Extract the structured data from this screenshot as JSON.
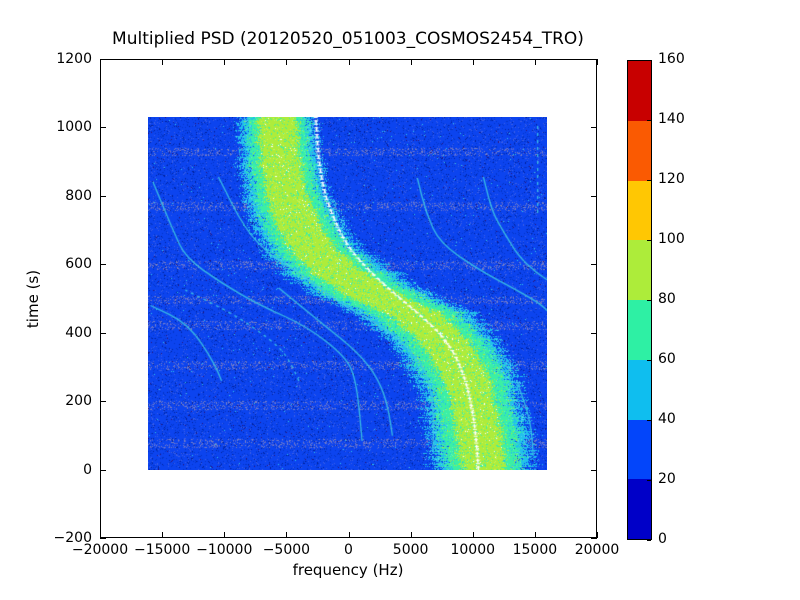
{
  "chart_data": {
    "type": "heatmap",
    "title": "Multiplied PSD (20120520_051003_COSMOS2454_TRO)",
    "xlabel": "frequency (Hz)",
    "ylabel": "time (s)",
    "xlim": [
      -20000,
      20000
    ],
    "ylim": [
      -200,
      1200
    ],
    "x_tick_values": [
      -20000,
      -15000,
      -10000,
      -5000,
      0,
      5000,
      10000,
      15000,
      20000
    ],
    "x_tick_labels": [
      "−20000",
      "−15000",
      "−10000",
      "−5000",
      "0",
      "5000",
      "10000",
      "15000",
      "20000"
    ],
    "y_tick_values": [
      -200,
      0,
      200,
      400,
      600,
      800,
      1000,
      1200
    ],
    "y_tick_labels": [
      "−200",
      "0",
      "200",
      "400",
      "600",
      "800",
      "1000",
      "1200"
    ],
    "grid": false,
    "legend": "none",
    "data_extent": {
      "freq_hz": [
        -16000,
        16000
      ],
      "time_s": [
        0,
        1030
      ]
    },
    "colorbar": {
      "min": 0,
      "max": 160,
      "boundaries": [
        0,
        20,
        40,
        60,
        80,
        100,
        120,
        140,
        160
      ],
      "tick_values": [
        0,
        20,
        40,
        60,
        80,
        100,
        120,
        140,
        160
      ],
      "tick_labels": [
        "0",
        "20",
        "40",
        "60",
        "80",
        "100",
        "120",
        "140",
        "160"
      ],
      "segment_colors": [
        "#0000C8",
        "#0345FA",
        "#0FBEEF",
        "#2EF0A4",
        "#ADEC3A",
        "#FFC703",
        "#FA5A02",
        "#C80000"
      ]
    },
    "background_noise": {
      "base": "#0C44EF",
      "dark": "#0334C8",
      "navy": "#01219B",
      "purple": "#311173",
      "light": "#3F60E6",
      "stripe_a": "#7A82C4",
      "stripe_b": "#5565D2",
      "speck": "#2FC8E8",
      "stripe_times_s": [
        928,
        770,
        598,
        496,
        422,
        305,
        188,
        77
      ]
    },
    "band": {
      "comment": "main Doppler echo band, center freq (Hz) vs time (s)",
      "center": [
        [
          0,
          10850
        ],
        [
          60,
          10700
        ],
        [
          150,
          10300
        ],
        [
          250,
          9700
        ],
        [
          320,
          8700
        ],
        [
          380,
          7600
        ],
        [
          420,
          6400
        ],
        [
          460,
          5200
        ],
        [
          500,
          2600
        ],
        [
          540,
          800
        ],
        [
          580,
          -900
        ],
        [
          640,
          -2700
        ],
        [
          700,
          -3800
        ],
        [
          800,
          -4900
        ],
        [
          900,
          -5400
        ],
        [
          1030,
          -5700
        ]
      ],
      "layers": [
        {
          "name": "cyan-40-60",
          "color": "#22C0EC",
          "alt": "#55D8F0",
          "half_width_hz_t0": 3900,
          "half_width_hz_t1030": 2900
        },
        {
          "name": "green-60-80",
          "color": "#3BEFA5",
          "alt": "#63F7BC",
          "half_width_hz_t0": 3000,
          "half_width_hz_t1030": 2250
        },
        {
          "name": "yellow-80-100",
          "color": "#AEEC3B",
          "alt": "#C6F55C",
          "half_width_hz_t0": 1750,
          "half_width_hz_t1030": 1500
        }
      ]
    },
    "white_line": {
      "color": "#FFFFFF",
      "points": [
        [
          0,
          10500
        ],
        [
          60,
          10400
        ],
        [
          160,
          10100
        ],
        [
          260,
          9500
        ],
        [
          340,
          8600
        ],
        [
          400,
          7400
        ],
        [
          460,
          5600
        ],
        [
          520,
          3600
        ],
        [
          580,
          1800
        ],
        [
          640,
          300
        ],
        [
          700,
          -700
        ],
        [
          800,
          -1800
        ],
        [
          900,
          -2300
        ],
        [
          1030,
          -2550
        ]
      ]
    },
    "arcs": {
      "color": "#3ECBE4",
      "list": [
        {
          "dashed": false,
          "points": [
            [
              85,
              1170
            ],
            [
              120,
              1090
            ],
            [
              260,
              700
            ],
            [
              330,
              -120
            ],
            [
              420,
              -3300
            ],
            [
              480,
              -7000
            ],
            [
              545,
              -10100
            ],
            [
              620,
              -13000
            ],
            [
              700,
              -14000
            ],
            [
              840,
              -15600
            ]
          ]
        },
        {
          "dashed": true,
          "points": [
            [
              260,
              -3900
            ],
            [
              329,
              -4700
            ],
            [
              384,
              -6300
            ],
            [
              452,
              -9000
            ],
            [
              525,
              -13000
            ]
          ]
        },
        {
          "dashed": false,
          "points": [
            [
              260,
              -10100
            ],
            [
              310,
              -10600
            ],
            [
              428,
              -12800
            ],
            [
              480,
              -15800
            ]
          ]
        },
        {
          "dashed": false,
          "points": [
            [
              60,
              6850
            ],
            [
              155,
              6960
            ],
            [
              262,
              6560
            ],
            [
              320,
              5750
            ],
            [
              408,
              3340
            ],
            [
              481,
              -440
            ],
            [
              583,
              -4100
            ],
            [
              620,
              -6000
            ],
            [
              700,
              -8200
            ],
            [
              855,
              -10350
            ]
          ]
        },
        {
          "dashed": false,
          "points": [
            [
              100,
              3600
            ],
            [
              174,
              3340
            ],
            [
              262,
              2535
            ],
            [
              341,
              925
            ],
            [
              428,
              -2052
            ],
            [
              531,
              -5513
            ]
          ]
        },
        {
          "dashed": false,
          "points": [
            [
              465,
              16000
            ],
            [
              481,
              15650
            ],
            [
              525,
              13560
            ],
            [
              583,
              10580
            ],
            [
              662,
              7400
            ],
            [
              750,
              6300
            ],
            [
              852,
              5600
            ]
          ]
        },
        {
          "dashed": false,
          "points": [
            [
              555,
              16000
            ],
            [
              574,
              15170
            ],
            [
              627,
              13640
            ],
            [
              691,
              12600
            ],
            [
              750,
              11630
            ],
            [
              855,
              10900
            ]
          ]
        },
        {
          "dashed": false,
          "points": [
            [
              40,
              14900
            ],
            [
              77,
              14850
            ],
            [
              154,
              14600
            ],
            [
              262,
              13560
            ]
          ]
        },
        {
          "dashed": true,
          "points": [
            [
              750,
              15250
            ],
            [
              1010,
              15250
            ]
          ]
        }
      ]
    }
  }
}
